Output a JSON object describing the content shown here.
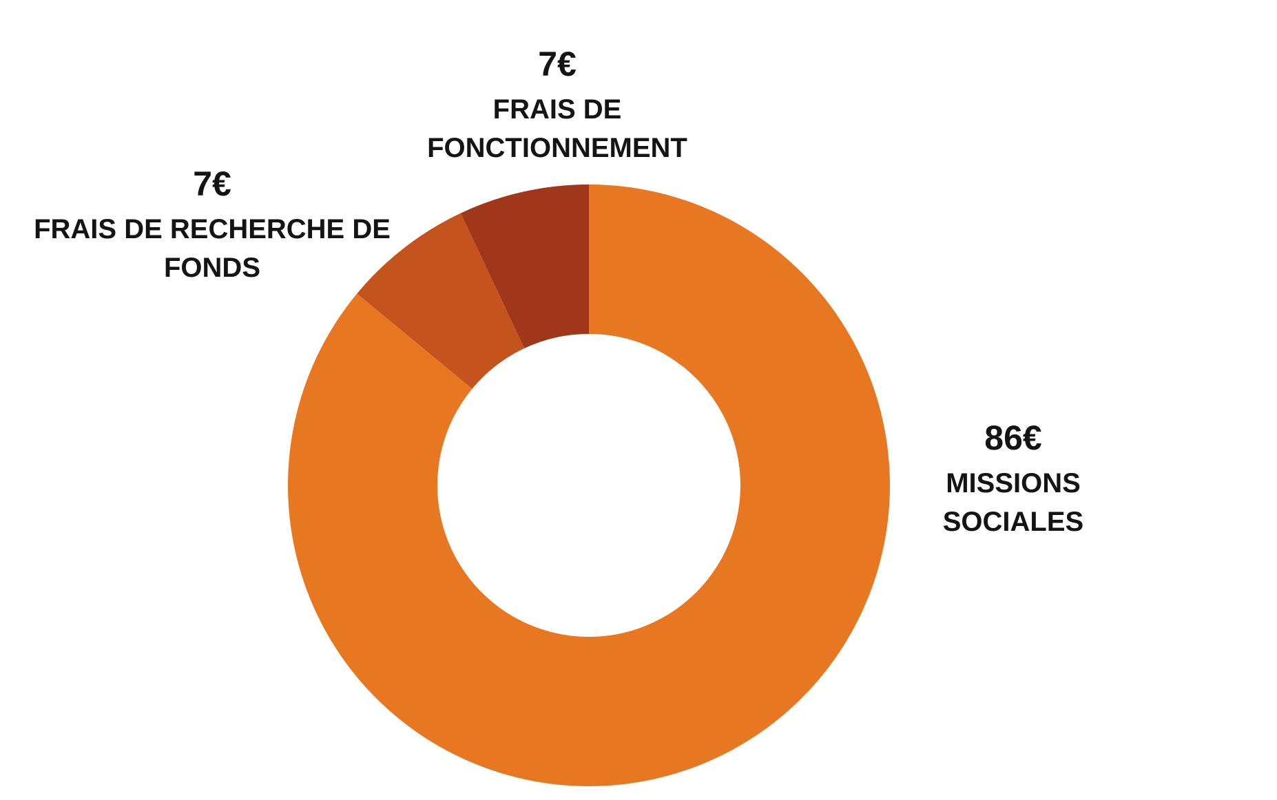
{
  "chart_data": {
    "type": "donut",
    "categories": [
      "MISSIONS SOCIALES",
      "FRAIS DE RECHERCHE DE FONDS",
      "FRAIS DE FONCTIONNEMENT"
    ],
    "values": [
      86,
      7,
      7
    ],
    "value_labels": [
      "86€",
      "7€",
      "7€"
    ],
    "colors": [
      "#e87722",
      "#c4531d",
      "#a0361a"
    ]
  }
}
